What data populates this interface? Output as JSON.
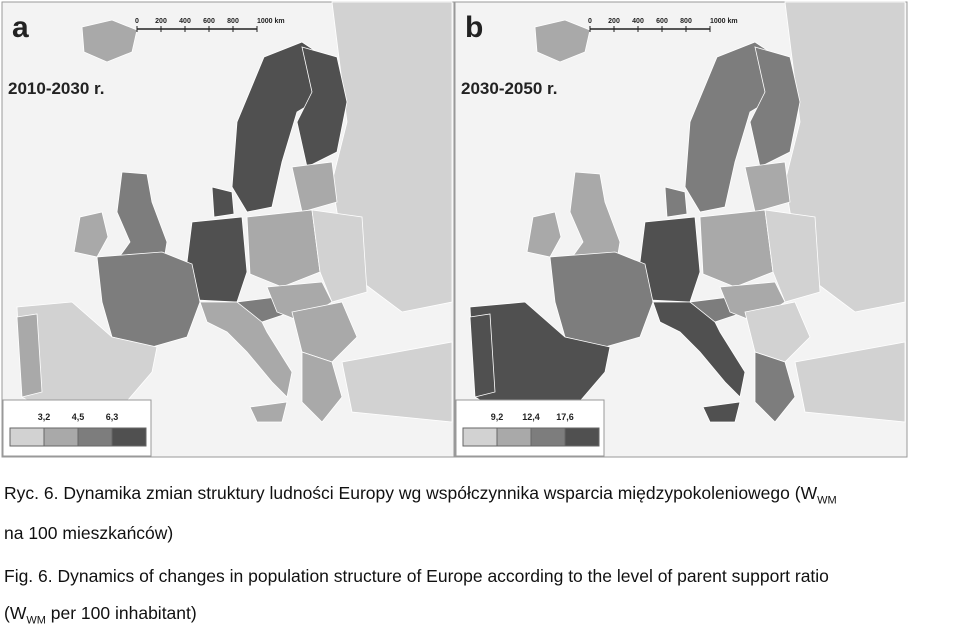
{
  "panels": [
    {
      "label": "a",
      "period": "2010-2030 r.",
      "scale": [
        "0",
        "200",
        "400",
        "600",
        "800",
        "1000 km"
      ],
      "legend": [
        "3,2",
        "4,5",
        "6,3"
      ]
    },
    {
      "label": "b",
      "period": "2030-2050 r.",
      "scale": [
        "0",
        "200",
        "400",
        "600",
        "800",
        "1000 km"
      ],
      "legend": [
        "9,2",
        "12,4",
        "17,6"
      ]
    }
  ],
  "caption": {
    "pl": {
      "start": "Ryc. 6. Dynamika zmian struktury ludności Europy wg współczynnika wsparcia międzypokoleniowego (W",
      "sub": "WM",
      "end": "na 100 mieszkańców)"
    },
    "en": {
      "start": "Fig. 6. Dynamics of changes in population structure of Europe according to the level of parent support ratio",
      "open": "(W",
      "sub": "WM",
      "end": " per 100 inhabitant)"
    }
  }
}
